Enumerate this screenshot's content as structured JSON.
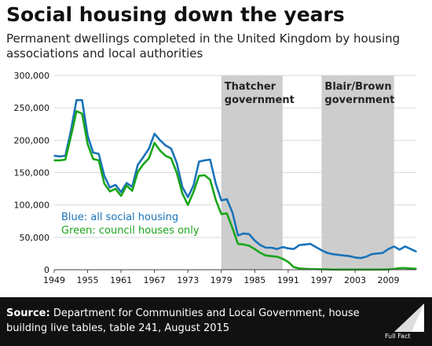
{
  "header": {
    "title": "Social housing down the years",
    "subtitle": "Permanent dwellings completed in the United Kingdom by housing associations and local authorities"
  },
  "footer": {
    "source_label": "Source:",
    "source_text": "Department for Communities and Local Government, house building live tables, table 241, August 2015",
    "logo_text": "Full Fact"
  },
  "colors": {
    "blue": "#1a73b8",
    "green": "#1aa51a",
    "shade": "#c8c8c8",
    "footer_bg": "#111111"
  },
  "chart_data": {
    "type": "line",
    "title": "Social housing down the years",
    "xlabel": "",
    "ylabel": "",
    "xlim": [
      1949,
      2014
    ],
    "ylim": [
      0,
      300000
    ],
    "grid": true,
    "y_ticks": [
      0,
      50000,
      100000,
      150000,
      200000,
      250000,
      300000
    ],
    "y_tick_labels": [
      "0",
      "50,000",
      "100,000",
      "150,000",
      "200,000",
      "250,000",
      "300,000"
    ],
    "x_ticks": [
      1949,
      1955,
      1961,
      1967,
      1973,
      1979,
      1985,
      1991,
      1997,
      2003,
      2009
    ],
    "x_tick_labels": [
      "1949",
      "1955",
      "1961",
      "1967",
      "1973",
      "1979",
      "1985",
      "1991",
      "1997",
      "2003",
      "2009"
    ],
    "shaded_periods": [
      {
        "label": [
          "Thatcher",
          "government"
        ],
        "start": 1979,
        "end": 1990
      },
      {
        "label": [
          "Blair/Brown",
          "government"
        ],
        "start": 1997,
        "end": 2010
      }
    ],
    "annotations": [
      "Blue: all social housing",
      "Green: council houses only"
    ],
    "x": [
      1949,
      1950,
      1951,
      1952,
      1953,
      1954,
      1955,
      1956,
      1957,
      1958,
      1959,
      1960,
      1961,
      1962,
      1963,
      1964,
      1965,
      1966,
      1967,
      1968,
      1969,
      1970,
      1971,
      1972,
      1973,
      1974,
      1975,
      1976,
      1977,
      1978,
      1979,
      1980,
      1981,
      1982,
      1983,
      1984,
      1985,
      1986,
      1987,
      1988,
      1989,
      1990,
      1991,
      1992,
      1993,
      1994,
      1995,
      1996,
      1997,
      1998,
      1999,
      2000,
      2001,
      2002,
      2003,
      2004,
      2005,
      2006,
      2007,
      2008,
      2009,
      2010,
      2011,
      2012,
      2013,
      2014
    ],
    "series": [
      {
        "name": "all social housing",
        "color": "#1a73b8",
        "values": [
          176000,
          175000,
          176000,
          215000,
          262000,
          262000,
          207000,
          181000,
          179000,
          145000,
          127000,
          131000,
          120000,
          134000,
          128000,
          162000,
          174000,
          187000,
          210000,
          200000,
          192000,
          187000,
          165000,
          128000,
          112000,
          130000,
          167000,
          169000,
          170000,
          133000,
          107000,
          109000,
          88000,
          53000,
          56000,
          55000,
          45000,
          38000,
          34000,
          34000,
          32000,
          35000,
          33000,
          32000,
          38000,
          39000,
          40000,
          35000,
          30000,
          26000,
          24000,
          23000,
          22000,
          21000,
          19000,
          18000,
          20000,
          24000,
          25000,
          26000,
          32000,
          36000,
          31000,
          36000,
          32000,
          28000
        ]
      },
      {
        "name": "council houses only",
        "color": "#1aa51a",
        "values": [
          169000,
          169000,
          170000,
          206000,
          245000,
          241000,
          194000,
          171000,
          169000,
          133000,
          121000,
          125000,
          114000,
          130000,
          122000,
          151000,
          163000,
          172000,
          196000,
          184000,
          176000,
          172000,
          150000,
          118000,
          100000,
          120000,
          145000,
          146000,
          139000,
          108000,
          86000,
          87000,
          64000,
          40000,
          39000,
          37000,
          32000,
          26000,
          22000,
          21000,
          20000,
          17000,
          12000,
          4000,
          2000,
          1500,
          1000,
          1000,
          700,
          500,
          300,
          200,
          200,
          200,
          200,
          200,
          200,
          300,
          300,
          300,
          500,
          1200,
          2500,
          2500,
          2000,
          1500
        ]
      }
    ]
  }
}
